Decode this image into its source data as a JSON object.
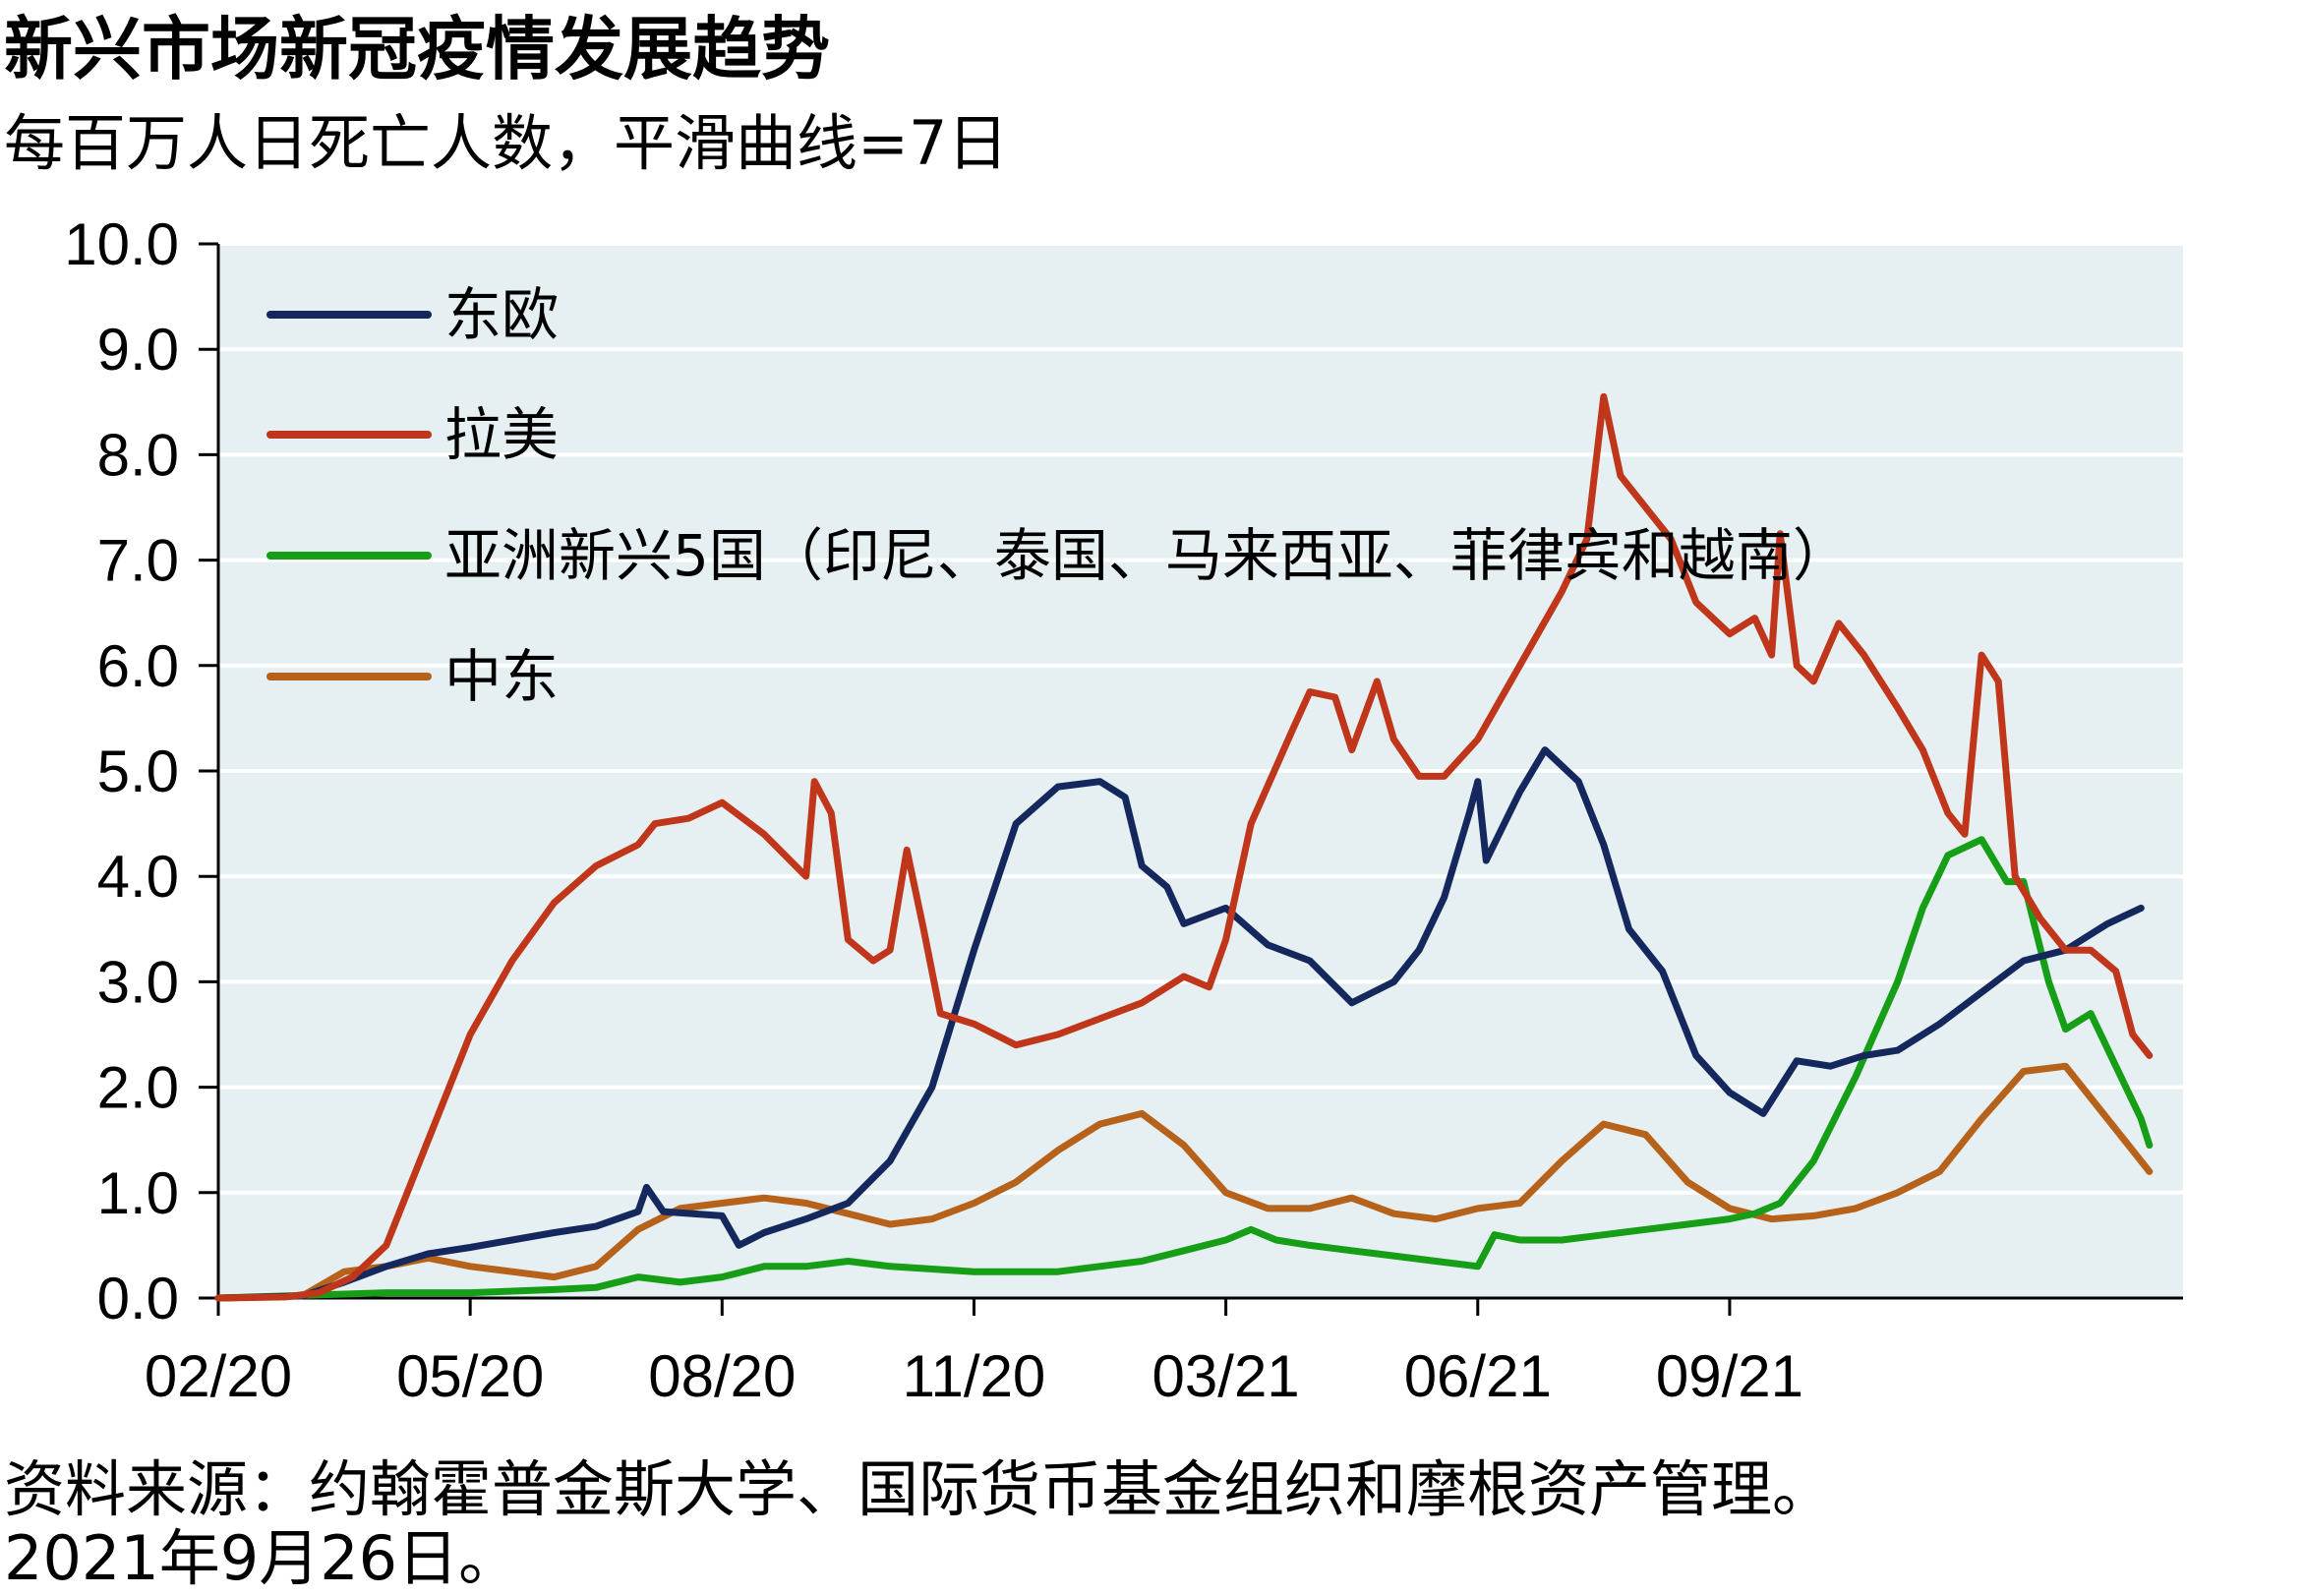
{
  "chart_data": {
    "type": "line",
    "title": "新兴市场新冠疫情发展趋势",
    "subtitle": "每百万人日死亡人数，平滑曲线=7日",
    "xlabel": "",
    "ylabel": "",
    "ylim": [
      0,
      10
    ],
    "yticks": [
      "0.0",
      "1.0",
      "2.0",
      "3.0",
      "4.0",
      "5.0",
      "6.0",
      "7.0",
      "8.0",
      "9.0",
      "10.0"
    ],
    "xticks": [
      "02/20",
      "05/20",
      "08/20",
      "11/20",
      "03/21",
      "06/21",
      "09/21"
    ],
    "grid": true,
    "legend_position": "top-left",
    "x_index_range": [
      0,
      18
    ],
    "series": [
      {
        "name": "东欧",
        "color": "#14285e",
        "points": [
          [
            0,
            0
          ],
          [
            1.0,
            0.02
          ],
          [
            1.5,
            0.15
          ],
          [
            2.0,
            0.3
          ],
          [
            2.5,
            0.42
          ],
          [
            3.0,
            0.48
          ],
          [
            3.5,
            0.55
          ],
          [
            4.0,
            0.62
          ],
          [
            4.5,
            0.68
          ],
          [
            5.0,
            0.82
          ],
          [
            5.1,
            1.05
          ],
          [
            5.3,
            0.82
          ],
          [
            6.0,
            0.78
          ],
          [
            6.2,
            0.5
          ],
          [
            6.5,
            0.62
          ],
          [
            7.0,
            0.75
          ],
          [
            7.5,
            0.9
          ],
          [
            8.0,
            1.3
          ],
          [
            8.5,
            2.0
          ],
          [
            9.0,
            3.3
          ],
          [
            9.5,
            4.5
          ],
          [
            10.0,
            4.85
          ],
          [
            10.5,
            4.9
          ],
          [
            10.8,
            4.75
          ],
          [
            11.0,
            4.1
          ],
          [
            11.3,
            3.9
          ],
          [
            11.5,
            3.55
          ],
          [
            12.0,
            3.7
          ],
          [
            12.5,
            3.35
          ],
          [
            13.0,
            3.2
          ],
          [
            13.5,
            2.8
          ],
          [
            14.0,
            3.0
          ],
          [
            14.3,
            3.3
          ],
          [
            14.6,
            3.8
          ],
          [
            14.9,
            4.6
          ],
          [
            15.0,
            4.9
          ],
          [
            15.1,
            4.15
          ],
          [
            15.5,
            4.8
          ],
          [
            15.8,
            5.2
          ],
          [
            16.2,
            4.9
          ],
          [
            16.5,
            4.3
          ],
          [
            16.8,
            3.5
          ],
          [
            17.2,
            3.1
          ],
          [
            17.6,
            2.3
          ],
          [
            18.0,
            1.95
          ],
          [
            18.4,
            1.75
          ],
          [
            18.8,
            2.25
          ],
          [
            19.2,
            2.2
          ],
          [
            19.6,
            2.3
          ],
          [
            20.0,
            2.35
          ],
          [
            20.5,
            2.6
          ],
          [
            21.0,
            2.9
          ],
          [
            21.5,
            3.2
          ],
          [
            22.0,
            3.3
          ],
          [
            22.5,
            3.55
          ],
          [
            22.9,
            3.7
          ]
        ]
      },
      {
        "name": "拉美",
        "color": "#c0361a",
        "points": [
          [
            0,
            0
          ],
          [
            0.8,
            0.01
          ],
          [
            1.2,
            0.05
          ],
          [
            1.6,
            0.2
          ],
          [
            2.0,
            0.5
          ],
          [
            2.5,
            1.5
          ],
          [
            3.0,
            2.5
          ],
          [
            3.5,
            3.2
          ],
          [
            4.0,
            3.75
          ],
          [
            4.5,
            4.1
          ],
          [
            5.0,
            4.3
          ],
          [
            5.2,
            4.5
          ],
          [
            5.6,
            4.55
          ],
          [
            6.0,
            4.7
          ],
          [
            6.5,
            4.4
          ],
          [
            7.0,
            4.0
          ],
          [
            7.1,
            4.9
          ],
          [
            7.3,
            4.6
          ],
          [
            7.5,
            3.4
          ],
          [
            7.8,
            3.2
          ],
          [
            8.0,
            3.3
          ],
          [
            8.2,
            4.25
          ],
          [
            8.4,
            3.5
          ],
          [
            8.6,
            2.7
          ],
          [
            9.0,
            2.6
          ],
          [
            9.5,
            2.4
          ],
          [
            10.0,
            2.5
          ],
          [
            10.5,
            2.65
          ],
          [
            11.0,
            2.8
          ],
          [
            11.5,
            3.05
          ],
          [
            11.8,
            2.95
          ],
          [
            12.0,
            3.4
          ],
          [
            12.3,
            4.5
          ],
          [
            12.8,
            5.4
          ],
          [
            13.0,
            5.75
          ],
          [
            13.3,
            5.7
          ],
          [
            13.5,
            5.2
          ],
          [
            13.8,
            5.85
          ],
          [
            14.0,
            5.3
          ],
          [
            14.3,
            4.95
          ],
          [
            14.6,
            4.95
          ],
          [
            15.0,
            5.3
          ],
          [
            15.5,
            6.0
          ],
          [
            16.0,
            6.7
          ],
          [
            16.3,
            7.2
          ],
          [
            16.5,
            8.55
          ],
          [
            16.7,
            7.8
          ],
          [
            17.0,
            7.5
          ],
          [
            17.3,
            7.2
          ],
          [
            17.6,
            6.6
          ],
          [
            18.0,
            6.3
          ],
          [
            18.3,
            6.45
          ],
          [
            18.5,
            6.1
          ],
          [
            18.6,
            7.25
          ],
          [
            18.8,
            6.0
          ],
          [
            19.0,
            5.85
          ],
          [
            19.3,
            6.4
          ],
          [
            19.6,
            6.1
          ],
          [
            20.0,
            5.6
          ],
          [
            20.3,
            5.2
          ],
          [
            20.6,
            4.6
          ],
          [
            20.8,
            4.4
          ],
          [
            21.0,
            6.1
          ],
          [
            21.2,
            5.85
          ],
          [
            21.4,
            4.0
          ],
          [
            21.7,
            3.6
          ],
          [
            22.0,
            3.3
          ],
          [
            22.3,
            3.3
          ],
          [
            22.6,
            3.1
          ],
          [
            22.8,
            2.5
          ],
          [
            23.0,
            2.3
          ]
        ]
      },
      {
        "name": "亚洲新兴5国（印尼、泰国、马来西亚、菲律宾和越南）",
        "color": "#169e16",
        "points": [
          [
            0,
            0
          ],
          [
            2.0,
            0.05
          ],
          [
            3.0,
            0.05
          ],
          [
            4.0,
            0.08
          ],
          [
            4.5,
            0.1
          ],
          [
            5.0,
            0.2
          ],
          [
            5.5,
            0.15
          ],
          [
            6.0,
            0.2
          ],
          [
            6.5,
            0.3
          ],
          [
            7.0,
            0.3
          ],
          [
            7.5,
            0.35
          ],
          [
            8.0,
            0.3
          ],
          [
            9.0,
            0.25
          ],
          [
            10.0,
            0.25
          ],
          [
            10.5,
            0.3
          ],
          [
            11.0,
            0.35
          ],
          [
            11.5,
            0.45
          ],
          [
            12.0,
            0.55
          ],
          [
            12.3,
            0.65
          ],
          [
            12.6,
            0.55
          ],
          [
            13.0,
            0.5
          ],
          [
            13.5,
            0.45
          ],
          [
            14.0,
            0.4
          ],
          [
            14.5,
            0.35
          ],
          [
            15.0,
            0.3
          ],
          [
            15.2,
            0.6
          ],
          [
            15.5,
            0.55
          ],
          [
            16.0,
            0.55
          ],
          [
            16.5,
            0.6
          ],
          [
            17.0,
            0.65
          ],
          [
            17.5,
            0.7
          ],
          [
            18.0,
            0.75
          ],
          [
            18.3,
            0.8
          ],
          [
            18.6,
            0.9
          ],
          [
            19.0,
            1.3
          ],
          [
            19.5,
            2.1
          ],
          [
            20.0,
            3.0
          ],
          [
            20.3,
            3.7
          ],
          [
            20.6,
            4.2
          ],
          [
            21.0,
            4.35
          ],
          [
            21.3,
            3.95
          ],
          [
            21.5,
            3.95
          ],
          [
            21.8,
            3.0
          ],
          [
            22.0,
            2.55
          ],
          [
            22.3,
            2.7
          ],
          [
            22.6,
            2.2
          ],
          [
            22.9,
            1.7
          ],
          [
            23.0,
            1.45
          ]
        ]
      },
      {
        "name": "中东",
        "color": "#b6621a",
        "points": [
          [
            0,
            0
          ],
          [
            1.0,
            0.02
          ],
          [
            1.5,
            0.25
          ],
          [
            2.0,
            0.3
          ],
          [
            2.5,
            0.38
          ],
          [
            3.0,
            0.3
          ],
          [
            3.5,
            0.25
          ],
          [
            4.0,
            0.2
          ],
          [
            4.5,
            0.3
          ],
          [
            5.0,
            0.65
          ],
          [
            5.5,
            0.85
          ],
          [
            6.0,
            0.9
          ],
          [
            6.5,
            0.95
          ],
          [
            7.0,
            0.9
          ],
          [
            7.5,
            0.8
          ],
          [
            8.0,
            0.7
          ],
          [
            8.5,
            0.75
          ],
          [
            9.0,
            0.9
          ],
          [
            9.5,
            1.1
          ],
          [
            10.0,
            1.4
          ],
          [
            10.5,
            1.65
          ],
          [
            11.0,
            1.75
          ],
          [
            11.5,
            1.45
          ],
          [
            12.0,
            1.0
          ],
          [
            12.5,
            0.85
          ],
          [
            13.0,
            0.85
          ],
          [
            13.5,
            0.95
          ],
          [
            14.0,
            0.8
          ],
          [
            14.5,
            0.75
          ],
          [
            15.0,
            0.85
          ],
          [
            15.5,
            0.9
          ],
          [
            16.0,
            1.3
          ],
          [
            16.5,
            1.65
          ],
          [
            17.0,
            1.55
          ],
          [
            17.5,
            1.1
          ],
          [
            18.0,
            0.85
          ],
          [
            18.5,
            0.75
          ],
          [
            19.0,
            0.78
          ],
          [
            19.5,
            0.85
          ],
          [
            20.0,
            1.0
          ],
          [
            20.5,
            1.2
          ],
          [
            21.0,
            1.7
          ],
          [
            21.5,
            2.15
          ],
          [
            22.0,
            2.2
          ],
          [
            22.5,
            1.7
          ],
          [
            23.0,
            1.2
          ]
        ]
      }
    ]
  },
  "source": {
    "line1": "资料来源：约翰霍普金斯大学、国际货币基金组织和摩根资产管理。",
    "line2": "2021年9月26日。"
  }
}
